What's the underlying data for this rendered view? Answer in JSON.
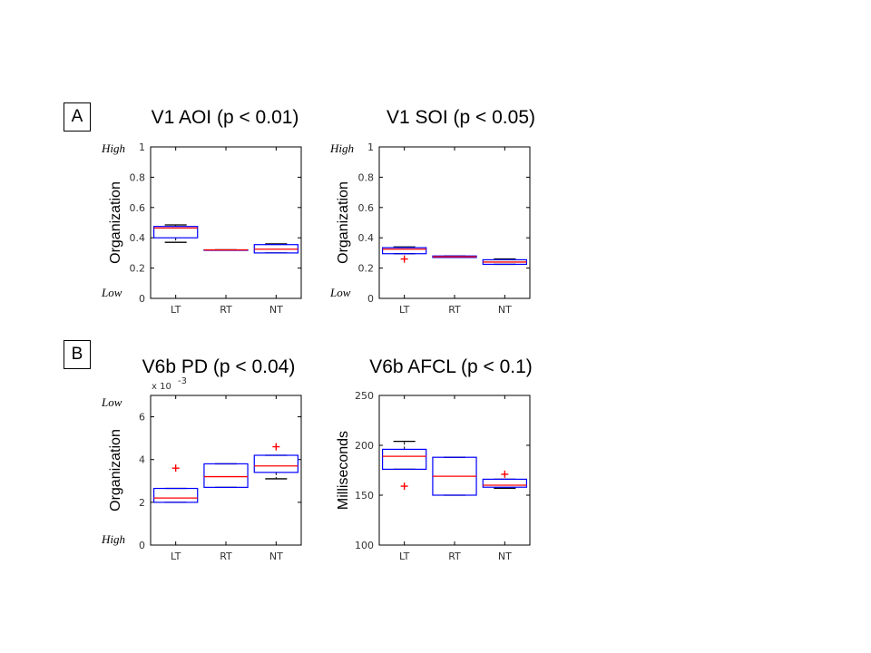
{
  "panels": {
    "A": "A",
    "B": "B"
  },
  "colors": {
    "box": "#0000ff",
    "median": "#ff0000",
    "whisker": "#000000",
    "outlier": "#ff0000",
    "axis": "#000000"
  },
  "chart_data": [
    {
      "type": "box",
      "title": "V1 AOI (p < 0.01)",
      "ylabel": "Organization",
      "ylim": [
        0,
        1
      ],
      "yticks": [
        "0",
        "0.2",
        "0.4",
        "0.6",
        "0.8",
        "1"
      ],
      "ytick_values": [
        0,
        0.2,
        0.4,
        0.6,
        0.8,
        1
      ],
      "annotations": {
        "top": "High",
        "bottom": "Low"
      },
      "categories": [
        "LT",
        "RT",
        "NT"
      ],
      "boxes": [
        {
          "q1": 0.4,
          "median": 0.465,
          "q3": 0.475,
          "whisker_low": 0.37,
          "whisker_high": 0.485,
          "outliers": []
        },
        {
          "q1": 0.32,
          "median": 0.32,
          "q3": 0.32,
          "whisker_low": 0.32,
          "whisker_high": 0.32,
          "outliers": []
        },
        {
          "q1": 0.3,
          "median": 0.325,
          "q3": 0.355,
          "whisker_low": 0.3,
          "whisker_high": 0.36,
          "outliers": []
        }
      ]
    },
    {
      "type": "box",
      "title": "V1 SOI (p < 0.05)",
      "ylabel": "Organization",
      "ylim": [
        0,
        1
      ],
      "yticks": [
        "0",
        "0.2",
        "0.4",
        "0.6",
        "0.8",
        "1"
      ],
      "ytick_values": [
        0,
        0.2,
        0.4,
        0.6,
        0.8,
        1
      ],
      "annotations": {
        "top": "High",
        "bottom": "Low"
      },
      "categories": [
        "LT",
        "RT",
        "NT"
      ],
      "boxes": [
        {
          "q1": 0.295,
          "median": 0.325,
          "q3": 0.335,
          "whisker_low": 0.295,
          "whisker_high": 0.34,
          "outliers": [
            0.26
          ]
        },
        {
          "q1": 0.27,
          "median": 0.275,
          "q3": 0.28,
          "whisker_low": 0.27,
          "whisker_high": 0.28,
          "outliers": []
        },
        {
          "q1": 0.225,
          "median": 0.24,
          "q3": 0.255,
          "whisker_low": 0.225,
          "whisker_high": 0.26,
          "outliers": []
        }
      ]
    },
    {
      "type": "box",
      "title": "V6b PD (p < 0.04)",
      "ylabel": "Organization",
      "ylim": [
        0,
        7
      ],
      "yticks": [
        "0",
        "2",
        "4",
        "6"
      ],
      "ytick_values": [
        0,
        2,
        4,
        6
      ],
      "scale_note": "x 10",
      "scale_exp": "-3",
      "annotations": {
        "top": "Low",
        "bottom": "High"
      },
      "categories": [
        "LT",
        "RT",
        "NT"
      ],
      "boxes": [
        {
          "q1": 2.0,
          "median": 2.2,
          "q3": 2.65,
          "whisker_low": 2.0,
          "whisker_high": 2.65,
          "outliers": [
            3.6
          ]
        },
        {
          "q1": 2.7,
          "median": 3.2,
          "q3": 3.8,
          "whisker_low": 2.7,
          "whisker_high": 3.8,
          "outliers": []
        },
        {
          "q1": 3.4,
          "median": 3.7,
          "q3": 4.2,
          "whisker_low": 3.1,
          "whisker_high": 4.2,
          "outliers": [
            4.6
          ]
        }
      ]
    },
    {
      "type": "box",
      "title": "V6b AFCL (p < 0.1)",
      "ylabel": "Milliseconds",
      "ylim": [
        100,
        250
      ],
      "yticks": [
        "100",
        "150",
        "200",
        "250"
      ],
      "ytick_values": [
        100,
        150,
        200,
        250
      ],
      "annotations": {
        "top": "",
        "bottom": ""
      },
      "categories": [
        "LT",
        "RT",
        "NT"
      ],
      "boxes": [
        {
          "q1": 176,
          "median": 189,
          "q3": 196,
          "whisker_low": 176,
          "whisker_high": 204,
          "outliers": [
            159
          ]
        },
        {
          "q1": 150,
          "median": 169,
          "q3": 188,
          "whisker_low": 150,
          "whisker_high": 188,
          "outliers": []
        },
        {
          "q1": 158,
          "median": 160,
          "q3": 166,
          "whisker_low": 157,
          "whisker_high": 166,
          "outliers": [
            171
          ]
        }
      ]
    }
  ]
}
